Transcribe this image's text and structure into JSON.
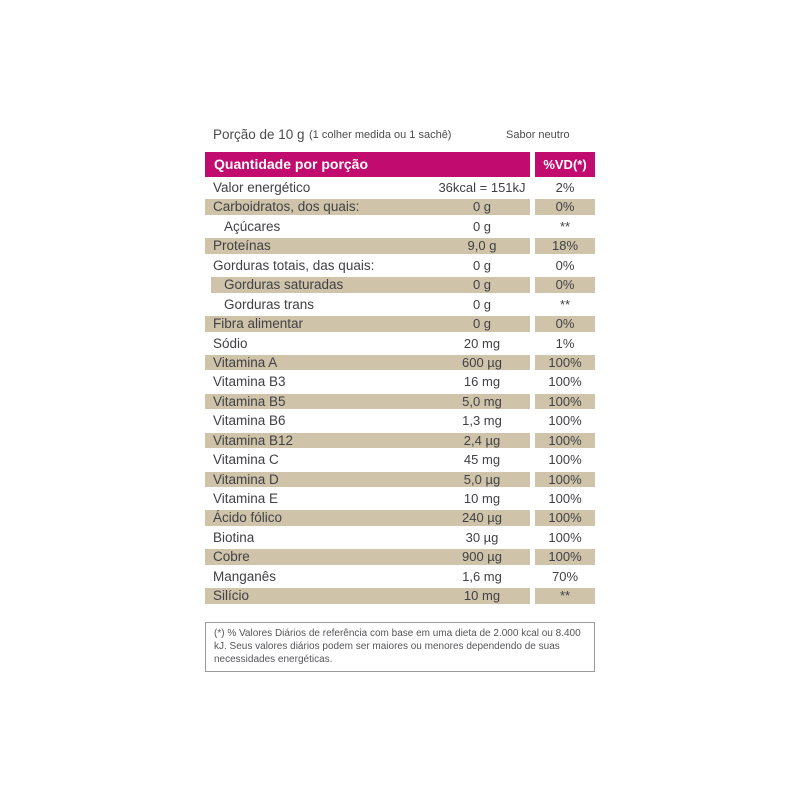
{
  "colors": {
    "accent": "#c20b6e",
    "row_band": "#cfc4aa",
    "text": "#414145",
    "header_text": "#ffffff"
  },
  "top": {
    "serving": "Porção de 10 g",
    "measure": "(1 colher medida ou 1 sachê)",
    "flavor": "Sabor neutro"
  },
  "table": {
    "header": {
      "quantity": "Quantidade por porção",
      "vd": "%VD(*)"
    },
    "rows": [
      {
        "label": "Valor energético",
        "value": "36kcal = 151kJ",
        "vd": "2%",
        "shaded": false,
        "indent": false
      },
      {
        "label": "Carboidratos, dos quais:",
        "value": "0 g",
        "vd": "0%",
        "shaded": true,
        "indent": false
      },
      {
        "label": "Açúcares",
        "value": "0 g",
        "vd": "**",
        "shaded": false,
        "indent": true
      },
      {
        "label": "Proteínas",
        "value": "9,0 g",
        "vd": "18%",
        "shaded": true,
        "indent": false
      },
      {
        "label": "Gorduras totais, das quais:",
        "value": "0 g",
        "vd": "0%",
        "shaded": false,
        "indent": false
      },
      {
        "label": "Gorduras saturadas",
        "value": "0 g",
        "vd": "0%",
        "shaded": true,
        "indent": true
      },
      {
        "label": "Gorduras trans",
        "value": "0 g",
        "vd": "**",
        "shaded": false,
        "indent": true
      },
      {
        "label": "Fibra alimentar",
        "value": "0 g",
        "vd": "0%",
        "shaded": true,
        "indent": false
      },
      {
        "label": "Sódio",
        "value": "20 mg",
        "vd": "1%",
        "shaded": false,
        "indent": false
      },
      {
        "label": "Vitamina A",
        "value": "600 µg",
        "vd": "100%",
        "shaded": true,
        "indent": false
      },
      {
        "label": "Vitamina B3",
        "value": "16 mg",
        "vd": "100%",
        "shaded": false,
        "indent": false
      },
      {
        "label": "Vitamina B5",
        "value": "5,0 mg",
        "vd": "100%",
        "shaded": true,
        "indent": false
      },
      {
        "label": "Vitamina B6",
        "value": "1,3 mg",
        "vd": "100%",
        "shaded": false,
        "indent": false
      },
      {
        "label": "Vitamina B12",
        "value": "2,4 µg",
        "vd": "100%",
        "shaded": true,
        "indent": false
      },
      {
        "label": "Vitamina C",
        "value": "45 mg",
        "vd": "100%",
        "shaded": false,
        "indent": false
      },
      {
        "label": "Vitamina D",
        "value": "5,0 µg",
        "vd": "100%",
        "shaded": true,
        "indent": false
      },
      {
        "label": "Vitamina E",
        "value": "10 mg",
        "vd": "100%",
        "shaded": false,
        "indent": false
      },
      {
        "label": "Ácido fólico",
        "value": "240 µg",
        "vd": "100%",
        "shaded": true,
        "indent": false
      },
      {
        "label": "Biotina",
        "value": "30 µg",
        "vd": "100%",
        "shaded": false,
        "indent": false
      },
      {
        "label": "Cobre",
        "value": "900 µg",
        "vd": "100%",
        "shaded": true,
        "indent": false
      },
      {
        "label": "Manganês",
        "value": "1,6 mg",
        "vd": "70%",
        "shaded": false,
        "indent": false
      },
      {
        "label": "Silício",
        "value": "10 mg",
        "vd": "**",
        "shaded": true,
        "indent": false
      }
    ]
  },
  "footnote": {
    "text": "(*) % Valores Diários de referência com base em uma dieta de 2.000 kcal ou 8.400 kJ. Seus valores diários podem ser maiores ou menores dependendo de suas necessidades energéticas."
  }
}
